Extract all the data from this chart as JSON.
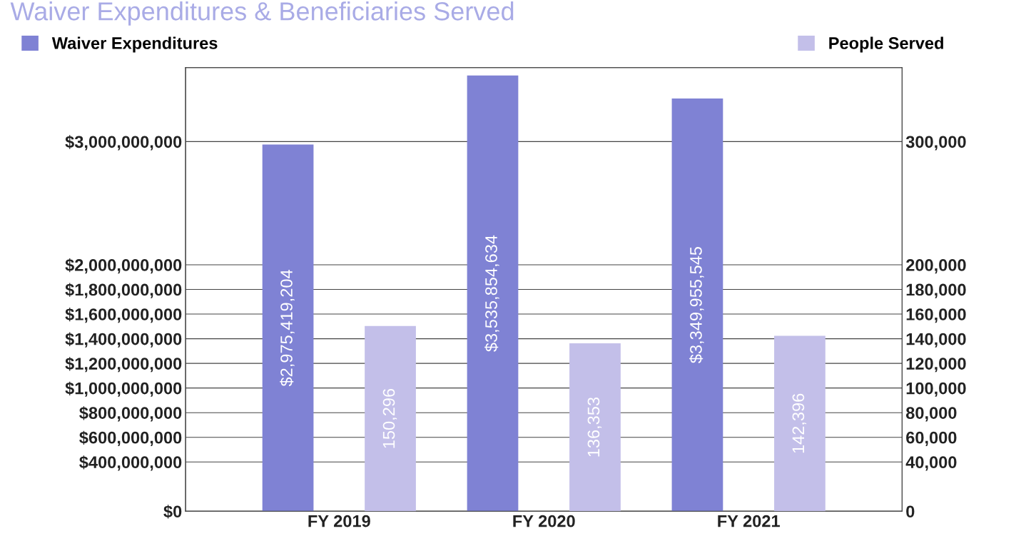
{
  "chart_data": {
    "type": "bar",
    "title": "Waiver Expenditures & Beneficiaries Served",
    "categories": [
      "FY 2019",
      "FY 2020",
      "FY 2021"
    ],
    "series": [
      {
        "name": "Waiver Expenditures",
        "color": "#7f82d4",
        "values": [
          2975419204,
          3535854634,
          3349955545
        ],
        "value_labels": [
          "$2,975,419,204",
          "$3,535,854,634",
          "$3,349,955,545"
        ]
      },
      {
        "name": "People Served",
        "color": "#c3bfe9",
        "axis": "y2",
        "values": [
          150296,
          136353,
          142396
        ],
        "value_labels": [
          "150,296",
          "136,353",
          "142,396"
        ]
      }
    ],
    "ylim": [
      0,
      3600000000
    ],
    "yticks": [
      {
        "value": 0,
        "label": "$0"
      },
      {
        "value": 400000000,
        "label": "$400,000,000"
      },
      {
        "value": 600000000,
        "label": "$600,000,000"
      },
      {
        "value": 800000000,
        "label": "$800,000,000"
      },
      {
        "value": 1000000000,
        "label": "$1,000,000,000"
      },
      {
        "value": 1200000000,
        "label": "$1,200,000,000"
      },
      {
        "value": 1400000000,
        "label": "$1,400,000,000"
      },
      {
        "value": 1600000000,
        "label": "$1,600,000,000"
      },
      {
        "value": 1800000000,
        "label": "$1,800,000,000"
      },
      {
        "value": 2000000000,
        "label": "$2,000,000,000"
      },
      {
        "value": 3000000000,
        "label": "$3,000,000,000"
      }
    ],
    "y2lim": [
      0,
      360000
    ],
    "y2ticks": [
      0,
      {
        "value": 40000,
        "label": "40,000"
      },
      {
        "value": 60000,
        "label": "60,000"
      },
      {
        "value": 80000,
        "label": "80,000"
      },
      {
        "value": 100000,
        "label": "100,000"
      },
      {
        "value": 120000,
        "label": "120,000"
      },
      {
        "value": 140000,
        "label": "140,000"
      },
      {
        "value": 160000,
        "label": "160,000"
      },
      {
        "value": 180000,
        "label": "180,000"
      },
      {
        "value": 200000,
        "label": "200,000"
      },
      {
        "value": 300000,
        "label": "300,000"
      }
    ],
    "grid": "y",
    "legend": "top"
  }
}
